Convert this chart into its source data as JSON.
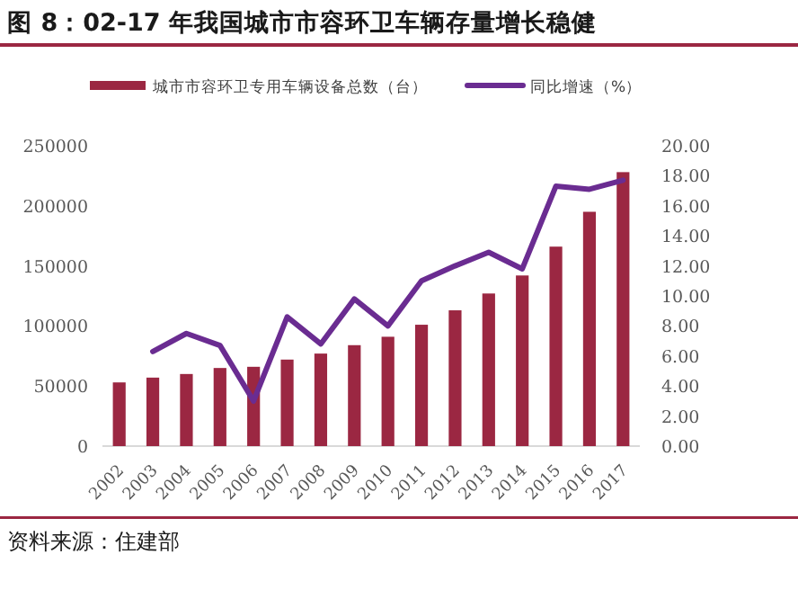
{
  "chart_data": {
    "type": "bar",
    "title": "图 8：02-17 年我国城市市容环卫车辆存量增长稳健",
    "categories": [
      "2002",
      "2003",
      "2004",
      "2005",
      "2006",
      "2007",
      "2008",
      "2009",
      "2010",
      "2011",
      "2012",
      "2013",
      "2014",
      "2015",
      "2016",
      "2017"
    ],
    "series": [
      {
        "name": "城市市容环卫专用车辆设备总数（台）",
        "color": "#9b2742",
        "values": [
          53000,
          57000,
          60000,
          65000,
          66000,
          72000,
          77000,
          84000,
          91000,
          101000,
          113000,
          127000,
          142000,
          166000,
          195000,
          228000
        ]
      },
      {
        "name": "同比增速（%）",
        "type": "line",
        "axis": "y2",
        "color": "#6a2c91",
        "values": [
          null,
          6.3,
          7.5,
          6.7,
          3.0,
          8.6,
          6.8,
          9.8,
          8.0,
          11.0,
          12.0,
          12.9,
          11.8,
          17.3,
          17.1,
          17.7
        ]
      }
    ],
    "ylim": [
      0,
      250000
    ],
    "yticks": [
      0,
      50000,
      100000,
      150000,
      200000,
      250000
    ],
    "y2lim": [
      0,
      20
    ],
    "y2ticks": [
      {
        "value": 0,
        "label": "0.00"
      },
      {
        "value": 2,
        "label": "2.00"
      },
      {
        "value": 4,
        "label": "4.00"
      },
      {
        "value": 6,
        "label": "6.00"
      },
      {
        "value": 8,
        "label": "8.00"
      },
      {
        "value": 10,
        "label": "10.00"
      },
      {
        "value": 12,
        "label": "12.00"
      },
      {
        "value": 14,
        "label": "14.00"
      },
      {
        "value": 16,
        "label": "16.00"
      },
      {
        "value": 18,
        "label": "18.00"
      },
      {
        "value": 20,
        "label": "20.00"
      }
    ],
    "legend": "top",
    "line_style": "solid",
    "marker": "none",
    "annotations": [
      "资料来源：住建部"
    ]
  }
}
